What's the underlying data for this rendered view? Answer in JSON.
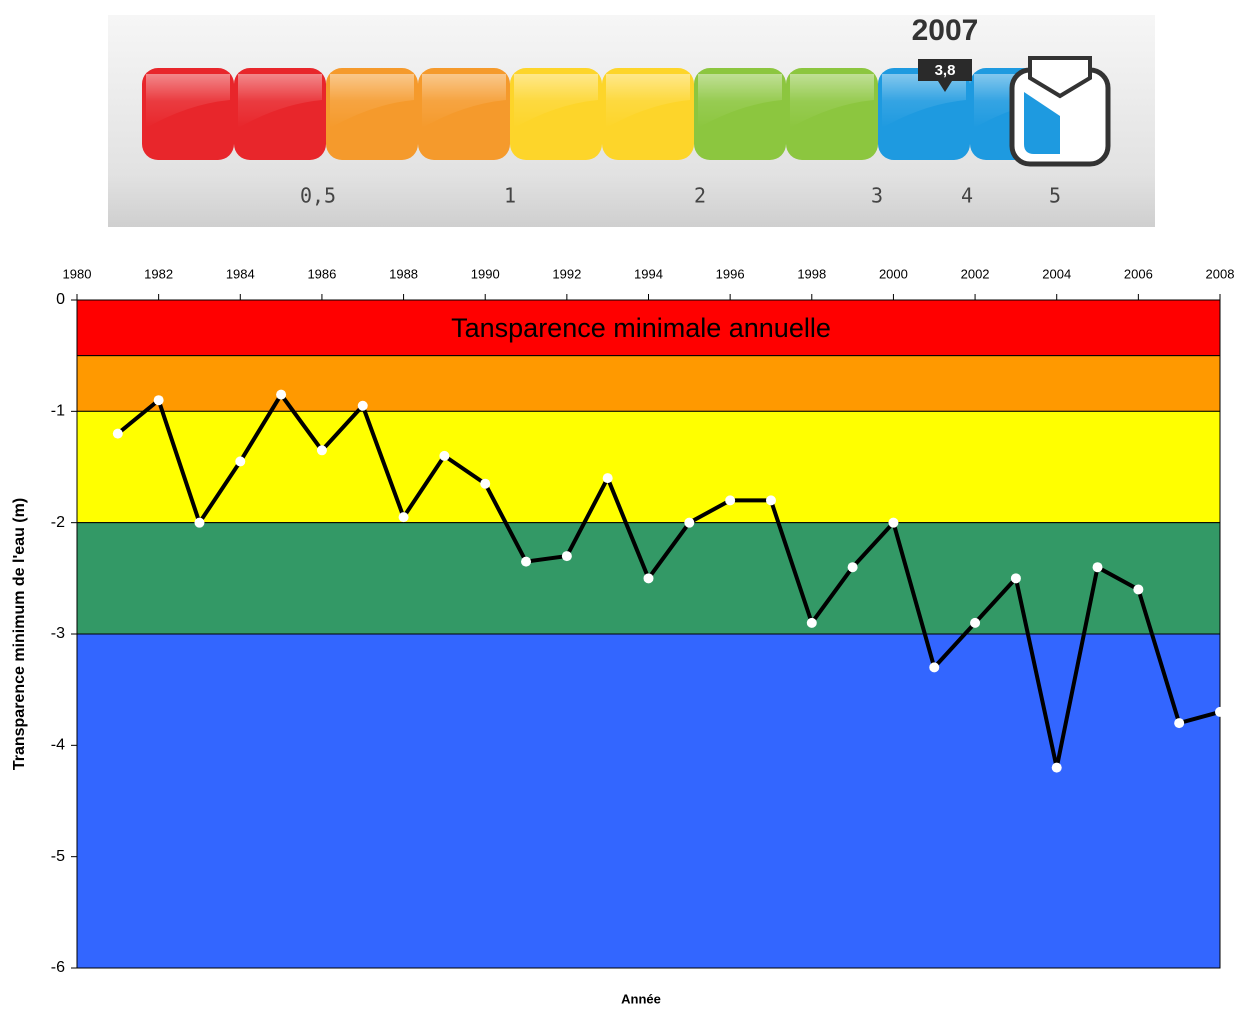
{
  "scale": {
    "year": "2007",
    "value": "3,8",
    "labels": [
      "0,5",
      "1",
      "2",
      "3",
      "4",
      "5"
    ],
    "colors": [
      "#e8262b",
      "#e8262b",
      "#f59a2c",
      "#f59a2c",
      "#fdd52a",
      "#fdd52a",
      "#8cc63f",
      "#8cc63f",
      "#1e9ae0",
      "#1e9ae0"
    ]
  },
  "chart_data": {
    "type": "line",
    "annotation": "Tansparence minimale annuelle",
    "xlabel": "Année",
    "ylabel": "Transparence minimum de l'eau (m)",
    "x": [
      1981,
      1982,
      1983,
      1984,
      1985,
      1986,
      1987,
      1988,
      1989,
      1990,
      1991,
      1992,
      1993,
      1994,
      1995,
      1996,
      1997,
      1998,
      1999,
      2000,
      2001,
      2002,
      2003,
      2004,
      2005,
      2006,
      2007,
      2008
    ],
    "values": [
      -1.2,
      -0.9,
      -2.0,
      -1.45,
      -0.85,
      -1.35,
      -0.95,
      -1.95,
      -1.4,
      -1.65,
      -2.35,
      -2.3,
      -1.6,
      -2.5,
      -2.0,
      -1.8,
      -1.8,
      -2.9,
      -2.4,
      -2.0,
      -3.3,
      -2.9,
      -2.5,
      -4.2,
      -2.4,
      -2.6,
      -3.8,
      -3.7
    ],
    "color": "#000000",
    "marker_color": "#ffffff",
    "xlim": [
      1980,
      2008
    ],
    "xticks": [
      1980,
      1982,
      1984,
      1986,
      1988,
      1990,
      1992,
      1994,
      1996,
      1998,
      2000,
      2002,
      2004,
      2006,
      2008
    ],
    "ylim": [
      -6,
      0
    ],
    "yticks": [
      0,
      -1,
      -2,
      -3,
      -4,
      -5,
      -6
    ],
    "bands": [
      {
        "from": 0,
        "to": -0.5,
        "color": "#ff0000"
      },
      {
        "from": -0.5,
        "to": -1,
        "color": "#ff9900"
      },
      {
        "from": -1,
        "to": -2,
        "color": "#ffff00"
      },
      {
        "from": -2,
        "to": -3,
        "color": "#339966"
      },
      {
        "from": -3,
        "to": -6,
        "color": "#3366ff"
      }
    ]
  }
}
